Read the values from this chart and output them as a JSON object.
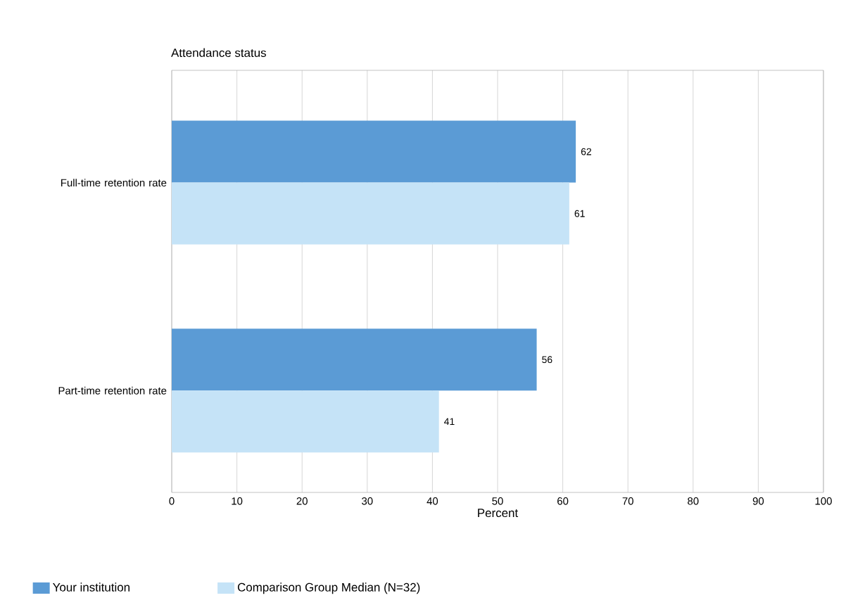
{
  "chart_data": {
    "type": "bar",
    "orientation": "horizontal",
    "title": "Attendance status",
    "xlabel": "Percent",
    "categories": [
      "Full-time retention rate",
      "Part-time retention rate"
    ],
    "series": [
      {
        "name": "Your institution",
        "color": "#5b9bd5",
        "values": [
          62,
          56
        ]
      },
      {
        "name": "Comparison Group Median (N=32)",
        "color": "#c5e3f7",
        "values": [
          61,
          41
        ]
      }
    ],
    "xlim": [
      0,
      100
    ],
    "xticks": [
      0,
      10,
      20,
      30,
      40,
      50,
      60,
      70,
      80,
      90,
      100
    ],
    "grid": "x",
    "legend": "bottom",
    "data_labels": true
  }
}
